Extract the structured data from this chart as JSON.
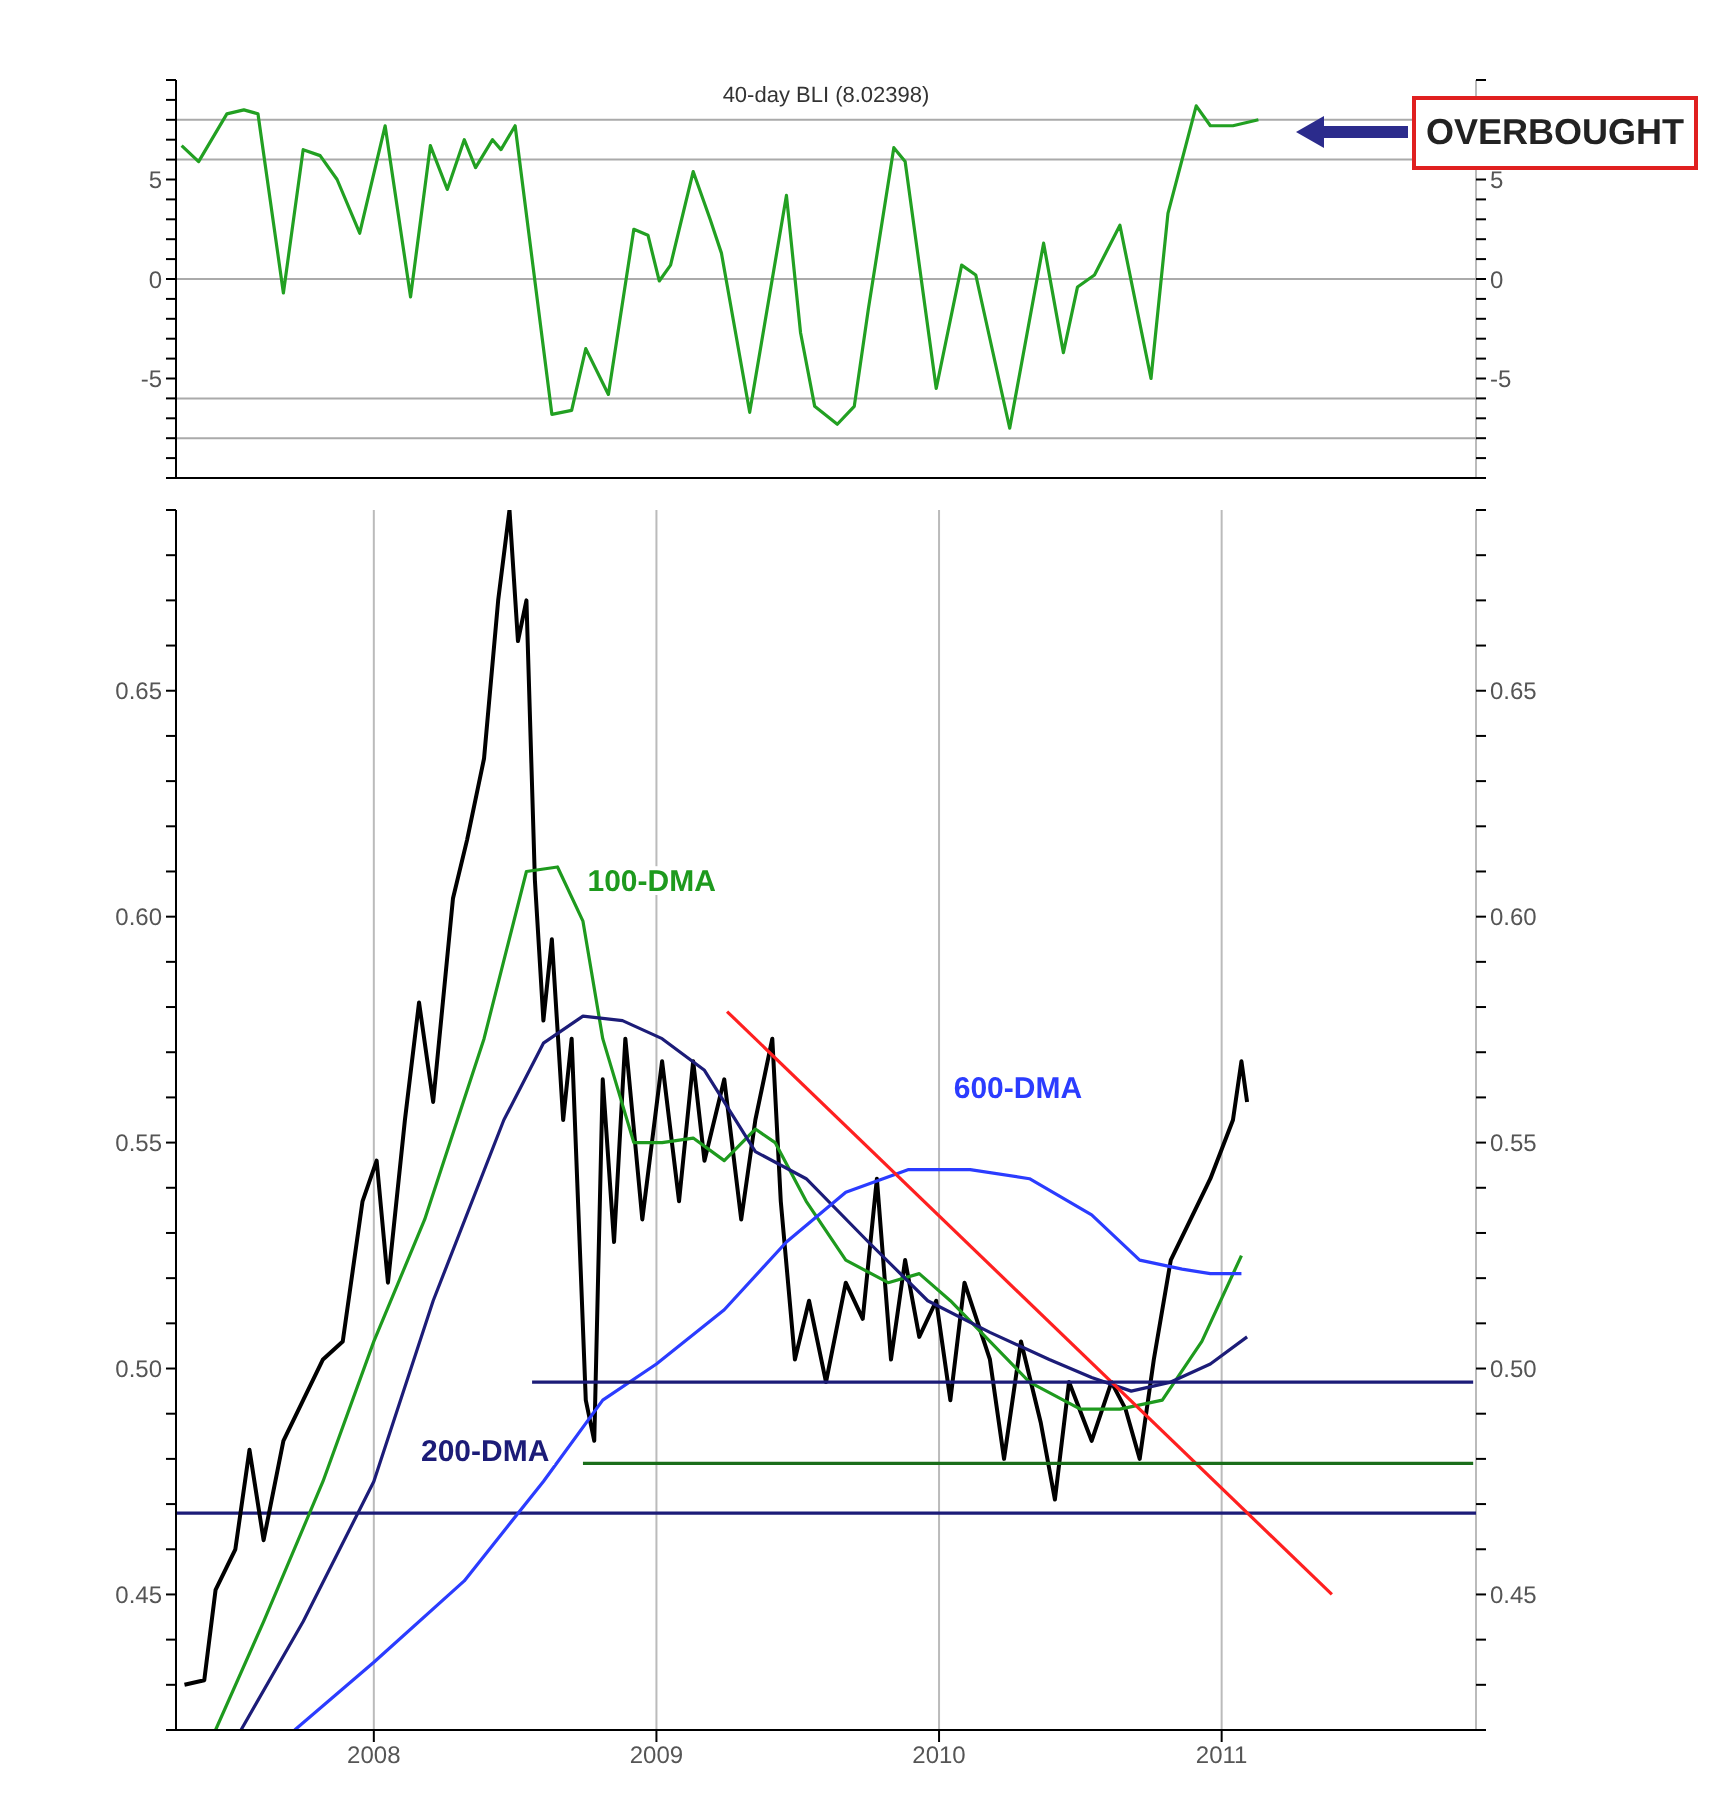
{
  "chart_data": [
    {
      "type": "line",
      "title": "40-day BLI (8.02398)",
      "annotations": [
        "OVERBOUGHT"
      ],
      "x": [
        2007.32,
        2007.38,
        2007.48,
        2007.54,
        2007.59,
        2007.68,
        2007.75,
        2007.81,
        2007.87,
        2007.95,
        2008.04,
        2008.13,
        2008.2,
        2008.26,
        2008.32,
        2008.36,
        2008.42,
        2008.45,
        2008.5,
        2008.63,
        2008.7,
        2008.75,
        2008.83,
        2008.92,
        2008.97,
        2009.01,
        2009.05,
        2009.13,
        2009.19,
        2009.23,
        2009.33,
        2009.46,
        2009.51,
        2009.56,
        2009.64,
        2009.7,
        2009.75,
        2009.84,
        2009.88,
        2009.99,
        2010.08,
        2010.13,
        2010.25,
        2010.37,
        2010.44,
        2010.49,
        2010.55,
        2010.64,
        2010.75,
        2010.81,
        2010.91,
        2010.96,
        2011.04,
        2011.13
      ],
      "series": [
        {
          "color": "#22a022",
          "values": [
            6.7,
            5.9,
            8.3,
            8.5,
            8.3,
            -0.7,
            6.5,
            6.2,
            5.0,
            2.3,
            7.7,
            -0.9,
            6.7,
            4.5,
            7.0,
            5.6,
            7.0,
            6.5,
            7.7,
            -6.8,
            -6.6,
            -3.5,
            -5.8,
            2.5,
            2.2,
            -0.1,
            0.7,
            5.4,
            3.0,
            1.3,
            -6.7,
            4.2,
            -2.7,
            -6.4,
            -7.3,
            -6.4,
            -1.5,
            6.6,
            5.9,
            -5.5,
            0.7,
            0.2,
            -7.5,
            1.8,
            -3.7,
            -0.4,
            0.2,
            2.7,
            -5.0,
            3.3,
            8.7,
            7.7,
            7.7,
            8.0
          ]
        }
      ],
      "xlim": [
        2007.3,
        2011.9
      ],
      "xticks": [
        2008,
        2009,
        2010,
        2011
      ],
      "ylim": [
        -10,
        10
      ],
      "yticks": [
        {
          "value": -10,
          "label": null
        },
        {
          "value": -9,
          "label": null
        },
        {
          "value": -8,
          "label": null
        },
        {
          "value": -7,
          "label": null
        },
        {
          "value": -6,
          "label": null
        },
        -5,
        {
          "value": -4,
          "label": null
        },
        {
          "value": -3,
          "label": null
        },
        {
          "value": -2,
          "label": null
        },
        {
          "value": -1,
          "label": null
        },
        0,
        {
          "value": 1,
          "label": null
        },
        {
          "value": 2,
          "label": null
        },
        {
          "value": 3,
          "label": null
        },
        {
          "value": 4,
          "label": null
        },
        5,
        {
          "value": 6,
          "label": null
        },
        {
          "value": 7,
          "label": null
        },
        {
          "value": 8,
          "label": null
        },
        {
          "value": 9,
          "label": null
        },
        {
          "value": 10,
          "label": null
        }
      ],
      "y2lim": [
        -10,
        10
      ],
      "y2ticks": [
        {
          "value": -10,
          "label": null
        },
        {
          "value": -9,
          "label": null
        },
        {
          "value": -8,
          "label": null
        },
        {
          "value": -7,
          "label": null
        },
        {
          "value": -6,
          "label": null
        },
        -5,
        {
          "value": -4,
          "label": null
        },
        {
          "value": -3,
          "label": null
        },
        {
          "value": -2,
          "label": null
        },
        {
          "value": -1,
          "label": null
        },
        0,
        {
          "value": 1,
          "label": null
        },
        {
          "value": 2,
          "label": null
        },
        {
          "value": 3,
          "label": null
        },
        {
          "value": 4,
          "label": null
        },
        5,
        {
          "value": 6,
          "label": null
        },
        {
          "value": 7,
          "label": null
        },
        {
          "value": 8,
          "label": null
        },
        {
          "value": 9,
          "label": null
        },
        {
          "value": 10,
          "label": null
        }
      ],
      "tick_labels": "y",
      "grid": "x",
      "ref_lines": [
        {
          "axis": "y",
          "value": 8,
          "color": "#aaaaaa"
        },
        {
          "axis": "y",
          "value": 6,
          "color": "#aaaaaa"
        },
        {
          "axis": "y",
          "value": 0,
          "color": "#aaaaaa"
        },
        {
          "axis": "y",
          "value": -6,
          "color": "#aaaaaa"
        },
        {
          "axis": "y",
          "value": -8,
          "color": "#aaaaaa"
        }
      ]
    },
    {
      "type": "line",
      "x": [
        2007.33,
        2007.4,
        2007.44,
        2007.51,
        2007.56,
        2007.61,
        2007.68,
        2007.75,
        2007.82,
        2007.89,
        2007.96,
        2008.01,
        2008.05,
        2008.11,
        2008.16,
        2008.21,
        2008.28,
        2008.33,
        2008.39,
        2008.44,
        2008.48,
        2008.51,
        2008.54,
        2008.57,
        2008.6,
        2008.63,
        2008.67,
        2008.7,
        2008.75,
        2008.78,
        2008.81,
        2008.85,
        2008.89,
        2008.95,
        2009.02,
        2009.08,
        2009.13,
        2009.17,
        2009.24,
        2009.3,
        2009.35,
        2009.41,
        2009.44,
        2009.49,
        2009.54,
        2009.6,
        2009.67,
        2009.73,
        2009.78,
        2009.83,
        2009.88,
        2009.93,
        2009.99,
        2010.04,
        2010.09,
        2010.18,
        2010.23,
        2010.29,
        2010.36,
        2010.41,
        2010.46,
        2010.54,
        2010.61,
        2010.66,
        2010.71,
        2010.76,
        2010.82,
        2010.89,
        2010.96,
        2011.04,
        2011.07,
        2011.09
      ],
      "series": [
        {
          "color": "#000000",
          "values": [
            0.43,
            0.431,
            0.451,
            0.46,
            0.482,
            0.462,
            0.484,
            0.493,
            0.502,
            0.506,
            0.537,
            0.546,
            0.519,
            0.555,
            0.581,
            0.559,
            0.604,
            0.617,
            0.635,
            0.67,
            0.69,
            0.661,
            0.67,
            0.608,
            0.577,
            0.595,
            0.555,
            0.573,
            0.493,
            0.484,
            0.564,
            0.528,
            0.573,
            0.533,
            0.568,
            0.537,
            0.568,
            0.546,
            0.564,
            0.533,
            0.555,
            0.573,
            0.537,
            0.502,
            0.515,
            0.497,
            0.519,
            0.511,
            0.542,
            0.502,
            0.524,
            0.507,
            0.515,
            0.493,
            0.519,
            0.502,
            0.48,
            0.506,
            0.488,
            0.471,
            0.497,
            0.484,
            0.497,
            0.491,
            0.48,
            0.502,
            0.524,
            0.533,
            0.542,
            0.555,
            0.568,
            0.559
          ]
        },
        {
          "name": "100-DMA",
          "color": "#1e9a1e",
          "x": [
            2007.44,
            2007.61,
            2007.82,
            2008.0,
            2008.18,
            2008.39,
            2008.54,
            2008.65,
            2008.74,
            2008.81,
            2008.92,
            2009.02,
            2009.13,
            2009.24,
            2009.35,
            2009.42,
            2009.53,
            2009.67,
            2009.82,
            2009.93,
            2010.04,
            2010.18,
            2010.32,
            2010.5,
            2010.64,
            2010.79,
            2010.93,
            2011.07
          ],
          "values": [
            0.42,
            0.444,
            0.475,
            0.506,
            0.533,
            0.573,
            0.61,
            0.611,
            0.599,
            0.573,
            0.55,
            0.55,
            0.551,
            0.546,
            0.553,
            0.55,
            0.537,
            0.524,
            0.519,
            0.521,
            0.515,
            0.506,
            0.497,
            0.491,
            0.491,
            0.493,
            0.506,
            0.525
          ]
        },
        {
          "name": "200-DMA",
          "color": "#1c1c78",
          "x": [
            2007.53,
            2007.75,
            2008.0,
            2008.21,
            2008.46,
            2008.6,
            2008.74,
            2008.88,
            2009.02,
            2009.17,
            2009.35,
            2009.53,
            2009.75,
            2009.96,
            2010.18,
            2010.39,
            2010.54,
            2010.68,
            2010.82,
            2010.96,
            2011.09
          ],
          "values": [
            0.42,
            0.444,
            0.475,
            0.515,
            0.555,
            0.572,
            0.578,
            0.577,
            0.573,
            0.566,
            0.548,
            0.542,
            0.528,
            0.515,
            0.508,
            0.502,
            0.498,
            0.495,
            0.497,
            0.501,
            0.507
          ]
        },
        {
          "name": "600-DMA",
          "color": "#2b3cff",
          "x": [
            2007.72,
            2008.0,
            2008.32,
            2008.6,
            2008.81,
            2009.0,
            2009.24,
            2009.46,
            2009.67,
            2009.89,
            2010.11,
            2010.32,
            2010.54,
            2010.71,
            2010.86,
            2010.96,
            2011.07
          ],
          "values": [
            0.42,
            0.435,
            0.453,
            0.475,
            0.493,
            0.501,
            0.513,
            0.528,
            0.539,
            0.544,
            0.544,
            0.542,
            0.534,
            0.524,
            0.522,
            0.521,
            0.521
          ]
        },
        {
          "color": "#ff2020",
          "x": [
            2009.25,
            2011.39
          ],
          "values": [
            0.579,
            0.45
          ]
        },
        {
          "color": "#1c1c78",
          "x": [
            2008.56,
            2011.89
          ],
          "values": [
            0.497,
            0.497
          ]
        },
        {
          "color": "#1a6e1a",
          "x": [
            2008.74,
            2011.89
          ],
          "values": [
            0.479,
            0.479
          ]
        }
      ],
      "xlim": [
        2007.3,
        2011.9
      ],
      "xticks": [
        2008,
        2009,
        2010,
        2011
      ],
      "ylim": [
        0.42,
        0.69
      ],
      "yticks": [
        {
          "value": 0.42,
          "label": null
        },
        {
          "value": 0.43,
          "label": null
        },
        {
          "value": 0.44,
          "label": null
        },
        {
          "value": 0.45,
          "label": "0.45"
        },
        {
          "value": 0.46,
          "label": null
        },
        {
          "value": 0.47,
          "label": null
        },
        {
          "value": 0.48,
          "label": null
        },
        {
          "value": 0.49,
          "label": null
        },
        {
          "value": 0.5,
          "label": "0.50"
        },
        {
          "value": 0.51,
          "label": null
        },
        {
          "value": 0.52,
          "label": null
        },
        {
          "value": 0.53,
          "label": null
        },
        {
          "value": 0.54,
          "label": null
        },
        {
          "value": 0.55,
          "label": "0.55"
        },
        {
          "value": 0.56,
          "label": null
        },
        {
          "value": 0.57,
          "label": null
        },
        {
          "value": 0.58,
          "label": null
        },
        {
          "value": 0.59,
          "label": null
        },
        {
          "value": 0.6,
          "label": "0.60"
        },
        {
          "value": 0.61,
          "label": null
        },
        {
          "value": 0.62,
          "label": null
        },
        {
          "value": 0.63,
          "label": null
        },
        {
          "value": 0.64,
          "label": null
        },
        {
          "value": 0.65,
          "label": "0.65"
        },
        {
          "value": 0.66,
          "label": null
        },
        {
          "value": 0.67,
          "label": null
        },
        {
          "value": 0.68,
          "label": null
        },
        {
          "value": 0.69,
          "label": null
        }
      ],
      "y2lim": [
        0.42,
        0.69
      ],
      "y2ticks": [
        {
          "value": 0.42,
          "label": null
        },
        {
          "value": 0.43,
          "label": null
        },
        {
          "value": 0.44,
          "label": null
        },
        {
          "value": 0.45,
          "label": "0.45"
        },
        {
          "value": 0.46,
          "label": null
        },
        {
          "value": 0.47,
          "label": null
        },
        {
          "value": 0.48,
          "label": null
        },
        {
          "value": 0.49,
          "label": null
        },
        {
          "value": 0.5,
          "label": "0.50"
        },
        {
          "value": 0.51,
          "label": null
        },
        {
          "value": 0.52,
          "label": null
        },
        {
          "value": 0.53,
          "label": null
        },
        {
          "value": 0.54,
          "label": null
        },
        {
          "value": 0.55,
          "label": "0.55"
        },
        {
          "value": 0.56,
          "label": null
        },
        {
          "value": 0.57,
          "label": null
        },
        {
          "value": 0.58,
          "label": null
        },
        {
          "value": 0.59,
          "label": null
        },
        {
          "value": 0.6,
          "label": "0.60"
        },
        {
          "value": 0.61,
          "label": null
        },
        {
          "value": 0.62,
          "label": null
        },
        {
          "value": 0.63,
          "label": null
        },
        {
          "value": 0.64,
          "label": null
        },
        {
          "value": 0.65,
          "label": "0.65"
        },
        {
          "value": 0.66,
          "label": null
        },
        {
          "value": 0.67,
          "label": null
        },
        {
          "value": 0.68,
          "label": null
        },
        {
          "value": 0.69,
          "label": null
        }
      ],
      "grid": "x",
      "ref_lines": [
        {
          "axis": "y",
          "value": 0.468,
          "color": "#1c1c78"
        }
      ]
    }
  ]
}
